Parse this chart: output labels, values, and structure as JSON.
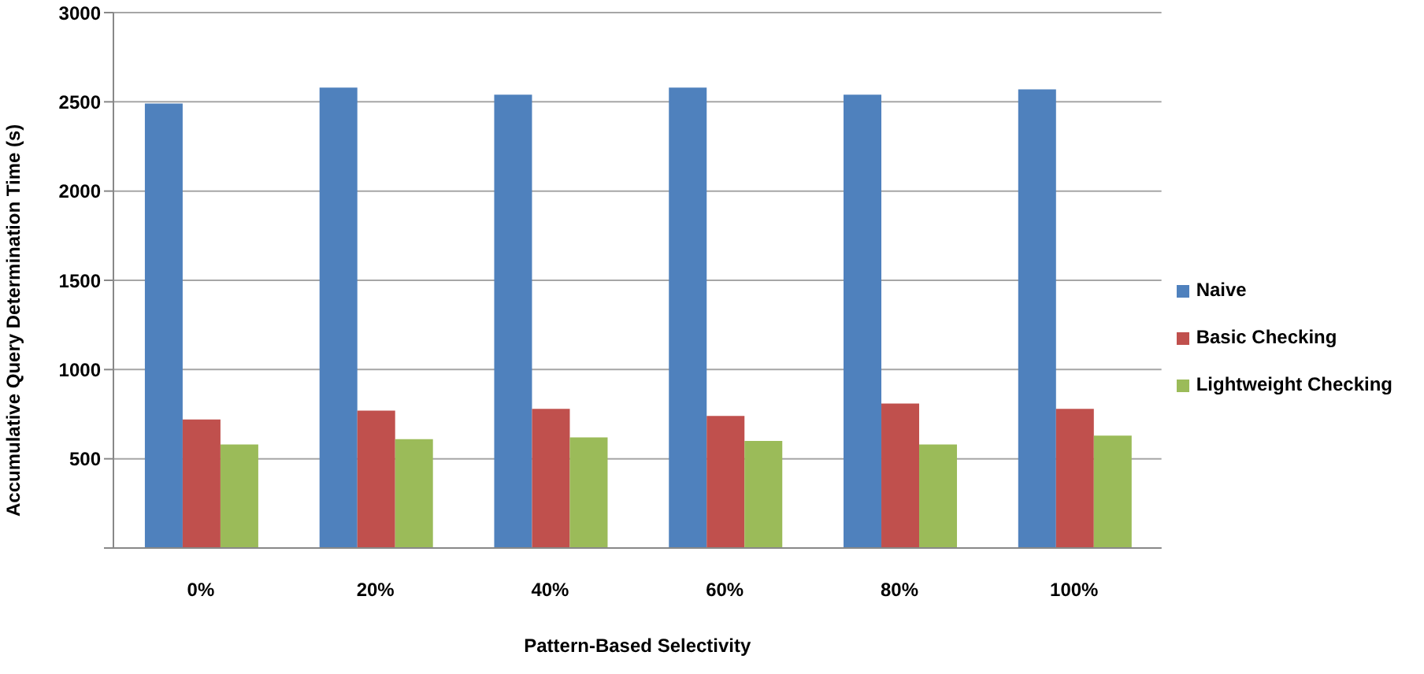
{
  "chart_data": {
    "type": "bar",
    "xlabel": "Pattern-Based Selectivity",
    "ylabel": "Accumulative Query Determination Time (s)",
    "categories": [
      "0%",
      "20%",
      "40%",
      "60%",
      "80%",
      "100%"
    ],
    "series": [
      {
        "name": "Naive",
        "color": "#4f81bd",
        "values": [
          2490,
          2580,
          2540,
          2580,
          2540,
          2570
        ]
      },
      {
        "name": "Basic Checking",
        "color": "#c0504d",
        "values": [
          720,
          770,
          780,
          740,
          810,
          780
        ]
      },
      {
        "name": "Lightweight Checking",
        "color": "#9bbb59",
        "values": [
          580,
          610,
          620,
          600,
          580,
          630
        ]
      }
    ],
    "ylim": [
      0,
      3000
    ],
    "yticks": [
      {
        "value": 0,
        "label": null
      },
      500,
      1000,
      1500,
      2000,
      2500,
      3000
    ],
    "grid": "y",
    "legend": "right"
  }
}
